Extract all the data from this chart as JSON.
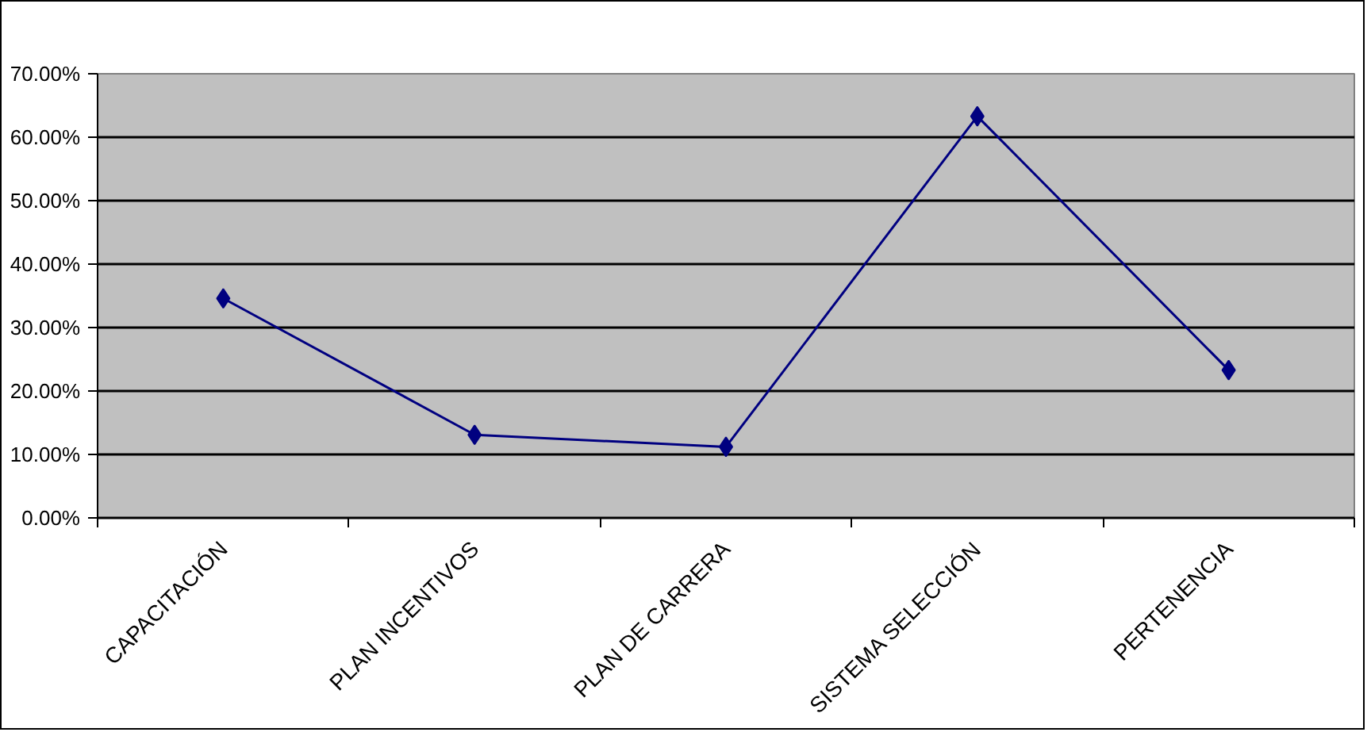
{
  "chart_data": {
    "type": "line",
    "categories": [
      "CAPACITACIÓN",
      "PLAN INCENTIVOS",
      "PLAN DE CARRERA",
      "SISTEMA SELECCIÓN",
      "PERTENENCIA"
    ],
    "series": [
      {
        "color": "#000080",
        "values": [
          34.6,
          13.1,
          11.2,
          63.3,
          23.3
        ]
      }
    ],
    "ylim": [
      0,
      70
    ],
    "yticks": [
      {
        "value": 0,
        "label": "0.00%"
      },
      {
        "value": 10,
        "label": "10.00%"
      },
      {
        "value": 20,
        "label": "20.00%"
      },
      {
        "value": 30,
        "label": "30.00%"
      },
      {
        "value": 40,
        "label": "40.00%"
      },
      {
        "value": 50,
        "label": "50.00%"
      },
      {
        "value": 60,
        "label": "60.00%"
      },
      {
        "value": 70,
        "label": "70.00%"
      }
    ],
    "grid": "y",
    "marker": "diamond",
    "line_style": "solid"
  }
}
